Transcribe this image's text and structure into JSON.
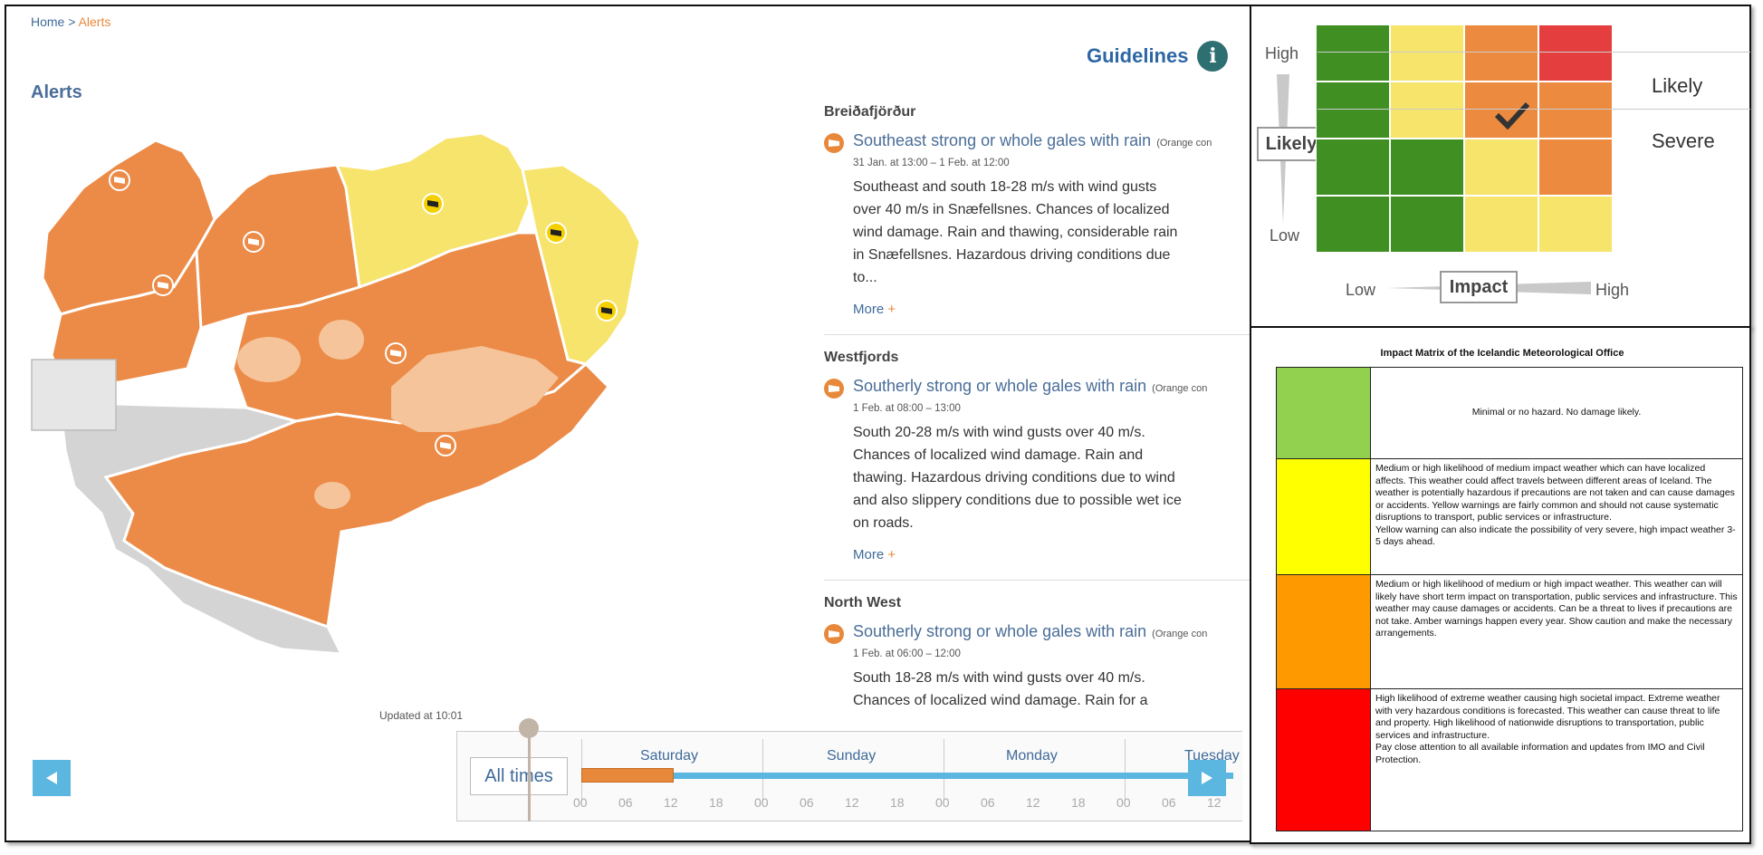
{
  "breadcrumb": {
    "home": "Home",
    "sep": ">",
    "current": "Alerts"
  },
  "page_title": "Alerts",
  "guidelines": {
    "label": "Guidelines",
    "icon": "info-icon",
    "icon_glyph": "i"
  },
  "updated": "Updated at 10:01",
  "alerts": [
    {
      "region": "Breiðafjörður",
      "title": "Southeast strong or whole gales with rain",
      "tag": "(Orange con",
      "time": "31 Jan. at 13:00 – 1 Feb. at 12:00",
      "description": "Southeast and south 18-28 m/s with wind gusts over 40 m/s in Snæfellsnes. Chances of localized wind damage. Rain and thawing, considerable rain in Snæfellsnes. Hazardous driving conditions due to...",
      "more": "More",
      "plus": "+"
    },
    {
      "region": "Westfjords",
      "title": "Southerly strong or whole gales with rain",
      "tag": "(Orange con",
      "time": "1 Feb. at 08:00 – 13:00",
      "description": "South 20-28 m/s with wind gusts over 40 m/s. Chances of localized wind damage. Rain and thawing. Hazardous driving conditions due to wind and also slippery conditions due to possible wet ice on roads.",
      "more": "More",
      "plus": "+"
    },
    {
      "region": "North West",
      "title": "Southerly strong or whole gales with rain",
      "tag": "(Orange con",
      "time": "1 Feb. at 06:00 – 12:00",
      "description": "South 18-28 m/s with wind gusts over 40 m/s. Chances of localized wind damage. Rain for a",
      "more": "",
      "plus": ""
    }
  ],
  "timeline": {
    "all_times": "All times",
    "days": [
      "Saturday",
      "Sunday",
      "Monday",
      "Tuesday"
    ],
    "hours": [
      "00",
      "06",
      "12",
      "18",
      "00",
      "06",
      "12",
      "18",
      "00",
      "06",
      "12",
      "18",
      "00",
      "06",
      "12"
    ]
  },
  "risk_matrix": {
    "y_axis": {
      "high": "High",
      "low": "Low",
      "label": "Likely"
    },
    "x_axis": {
      "low": "Low",
      "high": "High",
      "label": "Impact"
    },
    "rows": [
      [
        "green",
        "yellow",
        "orange",
        "red"
      ],
      [
        "green",
        "yellow",
        "orange",
        "orange"
      ],
      [
        "green",
        "green",
        "yellow",
        "orange"
      ],
      [
        "green",
        "green",
        "yellow",
        "yellow"
      ]
    ],
    "selected": {
      "row": 1,
      "col": 2
    },
    "colors": {
      "green": "#3f8f22",
      "yellow": "#f6e46b",
      "orange": "#ec8b40",
      "red": "#e53e3e"
    },
    "legend": {
      "likelihood": "Likely",
      "impact": "Severe"
    }
  },
  "impact_matrix": {
    "title": "Impact Matrix of the Icelandic Meteorological Office",
    "rows": [
      {
        "color": "#92d050",
        "text": [
          "Minimal or no hazard. No damage likely."
        ]
      },
      {
        "color": "#ffff00",
        "text": [
          "Medium or high likelihood of medium impact weather which can have localized affects. This weather could affect travels between different areas of Iceland. The weather is potentially hazardous if precautions are not taken and can cause damages or accidents. Yellow warnings are fairly common and should not cause systematic disruptions to transport, public services or infrastructure.",
          "Yellow warning can also indicate the possibility of very severe, high impact weather 3-5 days ahead."
        ]
      },
      {
        "color": "#ff9900",
        "text": [
          "Medium or high likelihood of medium or high impact weather. This weather can will likely have short term impact on transportation, public services and infrastructure.  This weather may cause damages or accidents. Can be a threat to lives if precautions are not take. Amber warnings happen every year. Show caution and make the necessary arrangements."
        ]
      },
      {
        "color": "#ff0000",
        "text": [
          "High likelihood of extreme weather causing high societal impact. Extreme weather with very hazardous conditions is forecasted. This weather can cause threat to life and property. High likelihood of nationwide disruptions to transportation, public services and infrastructure.",
          "Pay close attention to all available information and updates from IMO and Civil Protection."
        ]
      }
    ]
  },
  "map": {
    "colors": {
      "orange": "#ec8b47",
      "yellow": "#f7e46c",
      "gray": "#d4d4d4",
      "glacier": "#f5c49a",
      "border": "#ffffff"
    },
    "icons": [
      "windsock-icon",
      "windsock-icon",
      "windsock-icon",
      "windsock-icon",
      "windsock-icon",
      "windsock-icon",
      "windsock-icon",
      "windsock-icon"
    ]
  }
}
